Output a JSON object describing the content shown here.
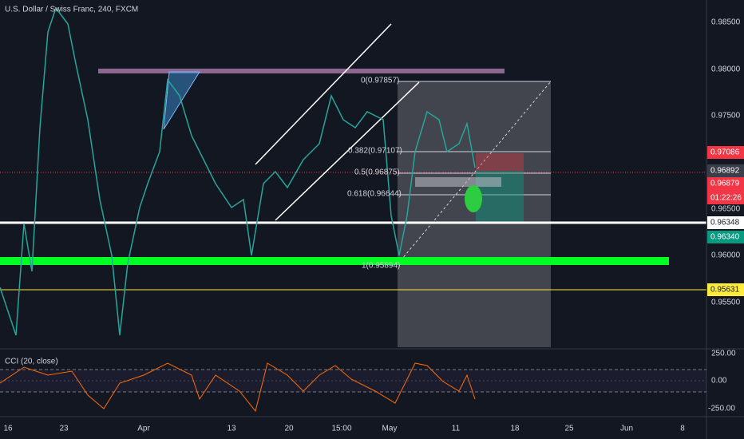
{
  "header": {
    "title": "U.S. Dollar / Swiss Franc, 240, FXCM"
  },
  "price_axis": {
    "labels": [
      "0.98500",
      "0.98000",
      "0.97500",
      "0.96500",
      "0.96000",
      "0.95500"
    ],
    "tags": {
      "upper_target": "0.97086",
      "current": "0.96892",
      "bid": "0.96879",
      "countdown": "01:22:26",
      "white_line": "0.96348",
      "lower_target": "0.96340",
      "yellow_line": "0.95631"
    }
  },
  "fib": {
    "levels": [
      "0(0.97857)",
      "0.382(0.97107)",
      "0.5(0.96875)",
      "0.618(0.96644)",
      "1(0.95894)"
    ]
  },
  "indicator": {
    "title": "CCI (20, close)",
    "labels": [
      "250.00",
      "0.00",
      "-250.00"
    ]
  },
  "time_axis": {
    "labels": [
      "16",
      "23",
      "Apr",
      "13",
      "20",
      "15:00",
      "May",
      "11",
      "18",
      "25",
      "Jun",
      "8"
    ]
  }
}
